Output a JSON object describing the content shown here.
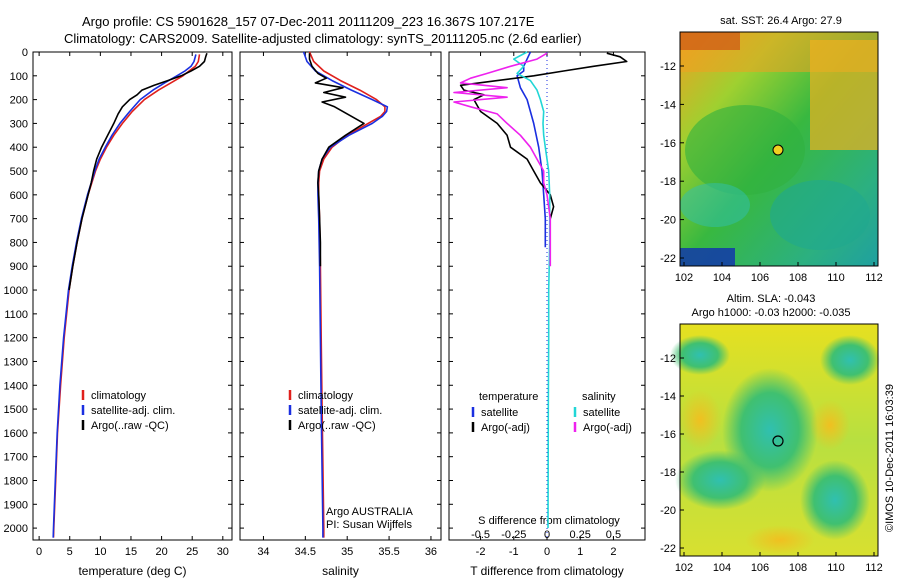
{
  "header": {
    "line1": "Argo profile: CS 5901628_157 07-Dec-2011 20111209_223 16.367S 107.217E",
    "line2": "Climatology: CARS2009. Satellite-adjusted climatology: synTS_20111205.nc (2.6d earlier)"
  },
  "colors": {
    "clim": "#e0201c",
    "sat": "#1a2fe0",
    "argo": "#000000",
    "cyan": "#21d6d6",
    "magenta": "#ee22ee"
  },
  "depth_axis": {
    "ticks": [
      0,
      100,
      200,
      300,
      400,
      500,
      600,
      700,
      800,
      900,
      1000,
      1100,
      1200,
      1300,
      1400,
      1500,
      1600,
      1700,
      1800,
      1900,
      2000
    ],
    "range": [
      0,
      2050
    ]
  },
  "chart_data": [
    {
      "type": "line",
      "name": "temperature",
      "xlabel": "temperature (deg C)",
      "xlim": [
        -1,
        31.5
      ],
      "xticks": [
        0,
        5,
        10,
        15,
        20,
        25,
        30
      ],
      "legend": [
        "climatology",
        "satellite-adj. clim.",
        "Argo(..raw -QC)"
      ],
      "series": [
        {
          "name": "climatology",
          "color": "clim",
          "depth": [
            10,
            40,
            60,
            80,
            100,
            130,
            160,
            200,
            250,
            300,
            350,
            400,
            450,
            500,
            550,
            600,
            700,
            800,
            900,
            1000,
            1200,
            1400,
            1600,
            1800,
            2000,
            2040
          ],
          "values": [
            26.2,
            26.0,
            25.5,
            24.5,
            23.5,
            21.5,
            19.5,
            17.2,
            15.2,
            13.6,
            12.2,
            11.0,
            10.0,
            9.2,
            8.6,
            8.0,
            7.0,
            6.2,
            5.5,
            4.9,
            4.1,
            3.5,
            3.0,
            2.7,
            2.4,
            2.35
          ]
        },
        {
          "name": "satellite-adj. clim.",
          "color": "sat",
          "depth": [
            10,
            40,
            60,
            80,
            100,
            130,
            160,
            200,
            250,
            300,
            350,
            400,
            450,
            500,
            550,
            600,
            700,
            800,
            900,
            1000,
            1200,
            1400,
            1600,
            1800,
            2000,
            2040
          ],
          "values": [
            25.6,
            25.3,
            24.8,
            23.8,
            22.5,
            20.5,
            18.6,
            16.5,
            14.8,
            13.2,
            11.9,
            10.8,
            9.8,
            9.1,
            8.5,
            7.9,
            6.9,
            6.1,
            5.4,
            4.8,
            4.0,
            3.4,
            2.95,
            2.65,
            2.35,
            2.3
          ]
        },
        {
          "name": "Argo(..raw -QC)",
          "color": "argo",
          "depth": [
            5,
            20,
            40,
            60,
            80,
            100,
            120,
            140,
            160,
            180,
            200,
            230,
            260,
            300,
            350,
            400,
            450,
            500,
            550,
            600,
            700,
            800,
            900,
            1000
          ],
          "values": [
            27.4,
            27.2,
            27.0,
            26.2,
            24.8,
            23.2,
            21.0,
            18.8,
            16.8,
            16.0,
            14.8,
            13.6,
            12.9,
            12.2,
            11.2,
            10.2,
            9.4,
            8.9,
            8.5,
            8.0,
            7.0,
            6.2,
            5.5,
            4.9
          ]
        }
      ]
    },
    {
      "type": "line",
      "name": "salinity",
      "xlabel": "salinity",
      "xlim": [
        33.72,
        36.12
      ],
      "xticks": [
        34,
        34.5,
        35,
        35.5,
        36
      ],
      "legend": [
        "climatology",
        "satellite-adj. clim.",
        "Argo(..raw -QC)"
      ],
      "annotation": [
        "Argo AUSTRALIA",
        "PI: Susan Wijffels"
      ],
      "series": [
        {
          "name": "climatology",
          "color": "clim",
          "depth": [
            0,
            40,
            80,
            120,
            160,
            200,
            230,
            250,
            270,
            300,
            350,
            400,
            450,
            500,
            550,
            600,
            700,
            900,
            1200,
            1500,
            2000,
            2040
          ],
          "values": [
            34.55,
            34.6,
            34.72,
            34.92,
            35.15,
            35.35,
            35.45,
            35.45,
            35.4,
            35.25,
            35.0,
            34.82,
            34.72,
            34.67,
            34.66,
            34.66,
            34.67,
            34.68,
            34.69,
            34.7,
            34.72,
            34.72
          ]
        },
        {
          "name": "satellite-adj. clim.",
          "color": "sat",
          "depth": [
            0,
            40,
            80,
            120,
            160,
            200,
            230,
            250,
            270,
            300,
            350,
            400,
            450,
            500,
            550,
            600,
            700,
            900,
            1200,
            1500,
            2000,
            2040
          ],
          "values": [
            34.48,
            34.52,
            34.62,
            34.82,
            35.05,
            35.3,
            35.48,
            35.47,
            35.42,
            35.3,
            35.02,
            34.8,
            34.7,
            34.66,
            34.65,
            34.65,
            34.66,
            34.67,
            34.68,
            34.69,
            34.71,
            34.71
          ]
        },
        {
          "name": "Argo(..raw -QC)",
          "color": "argo",
          "depth": [
            5,
            30,
            60,
            90,
            110,
            130,
            150,
            170,
            190,
            210,
            230,
            260,
            300,
            350,
            400,
            450,
            500,
            550,
            600,
            700,
            800,
            900
          ],
          "values": [
            34.55,
            34.55,
            34.58,
            34.65,
            34.75,
            34.62,
            34.95,
            34.72,
            34.98,
            34.7,
            34.85,
            35.0,
            35.2,
            34.98,
            34.78,
            34.7,
            34.66,
            34.65,
            34.66,
            34.67,
            34.68,
            34.68
          ]
        }
      ]
    },
    {
      "type": "line",
      "name": "difference",
      "xlabel": "T difference from climatology",
      "top_xlabel": "S difference from climatology",
      "xlim": [
        -2.95,
        2.95
      ],
      "xticks": [
        -2,
        -1,
        0,
        1,
        2
      ],
      "top_ticks": [
        {
          "value": -2,
          "label": "-0.5"
        },
        {
          "value": -1,
          "label": "-0.25"
        },
        {
          "value": 0,
          "label": "0"
        },
        {
          "value": 1,
          "label": "0.25"
        },
        {
          "value": 2,
          "label": "0.5"
        }
      ],
      "legend_titles": [
        "temperature",
        "salinity"
      ],
      "legend_left": [
        "satellite",
        "Argo(-adj)"
      ],
      "legend_right": [
        "satellite",
        "Argo(-adj)"
      ],
      "series": [
        {
          "name": "T satellite",
          "color": "sat",
          "depth": [
            0,
            30,
            60,
            80,
            100,
            150,
            200,
            300,
            400,
            500,
            600,
            700,
            800,
            820
          ],
          "values": [
            -0.5,
            -0.6,
            -0.7,
            -0.7,
            -0.9,
            -0.8,
            -0.6,
            -0.4,
            -0.25,
            -0.15,
            -0.1,
            -0.05,
            -0.05,
            -0.05
          ]
        },
        {
          "name": "T Argo(-adj)",
          "color": "argo",
          "depth": [
            5,
            20,
            40,
            60,
            80,
            100,
            120,
            140,
            160,
            180,
            200,
            250,
            300,
            350,
            400,
            450,
            500,
            550,
            600,
            650,
            700
          ],
          "values": [
            1.8,
            2.2,
            2.4,
            1.4,
            0.5,
            -0.4,
            -1.5,
            -2.6,
            -2.5,
            -1.9,
            -2.2,
            -2.0,
            -1.5,
            -1.2,
            -1.1,
            -0.6,
            -0.4,
            -0.2,
            0.1,
            0.2,
            0.1
          ]
        },
        {
          "name": "S satellite",
          "color": "cyan",
          "depth": [
            0,
            30,
            60,
            90,
            120,
            160,
            200,
            250,
            300,
            350,
            400,
            450,
            500,
            600,
            800,
            1000,
            1200,
            1500,
            2000
          ],
          "values": [
            -0.6,
            -1.0,
            -0.7,
            -0.9,
            -0.5,
            -0.3,
            -0.2,
            -0.1,
            -0.12,
            -0.1,
            -0.05,
            0.0,
            0.05,
            0.08,
            0.08,
            0.05,
            0.05,
            0.04,
            0.03
          ]
        },
        {
          "name": "S Argo(-adj)",
          "color": "magenta",
          "depth": [
            5,
            30,
            60,
            90,
            110,
            130,
            150,
            170,
            190,
            210,
            230,
            260,
            300,
            350,
            400,
            450,
            500,
            550,
            600,
            700,
            800,
            900
          ],
          "values": [
            0.0,
            -0.3,
            -1.1,
            -1.8,
            -2.3,
            -2.6,
            -1.2,
            -2.8,
            -1.2,
            -2.8,
            -2.3,
            -1.5,
            -1.2,
            -0.8,
            -0.5,
            -0.3,
            -0.1,
            -0.1,
            0.0,
            0.1,
            0.1,
            0.1
          ]
        }
      ]
    }
  ],
  "map_top": {
    "title": "sat. SST: 26.4  Argo: 27.9",
    "yticks": [
      "-12",
      "-14",
      "-16",
      "-18",
      "-20",
      "-22"
    ],
    "xticks": [
      "102",
      "104",
      "106",
      "108",
      "110",
      "112"
    ]
  },
  "map_bottom": {
    "title1": "Altim. SLA: -0.043",
    "title2": "Argo h1000: -0.03 h2000: -0.035",
    "yticks": [
      "-12",
      "-14",
      "-16",
      "-18",
      "-20",
      "-22"
    ],
    "xticks": [
      "102",
      "104",
      "106",
      "108",
      "110",
      "112"
    ]
  },
  "footer_stamp": "©IMOS 10-Dec-2011 16:03:39"
}
